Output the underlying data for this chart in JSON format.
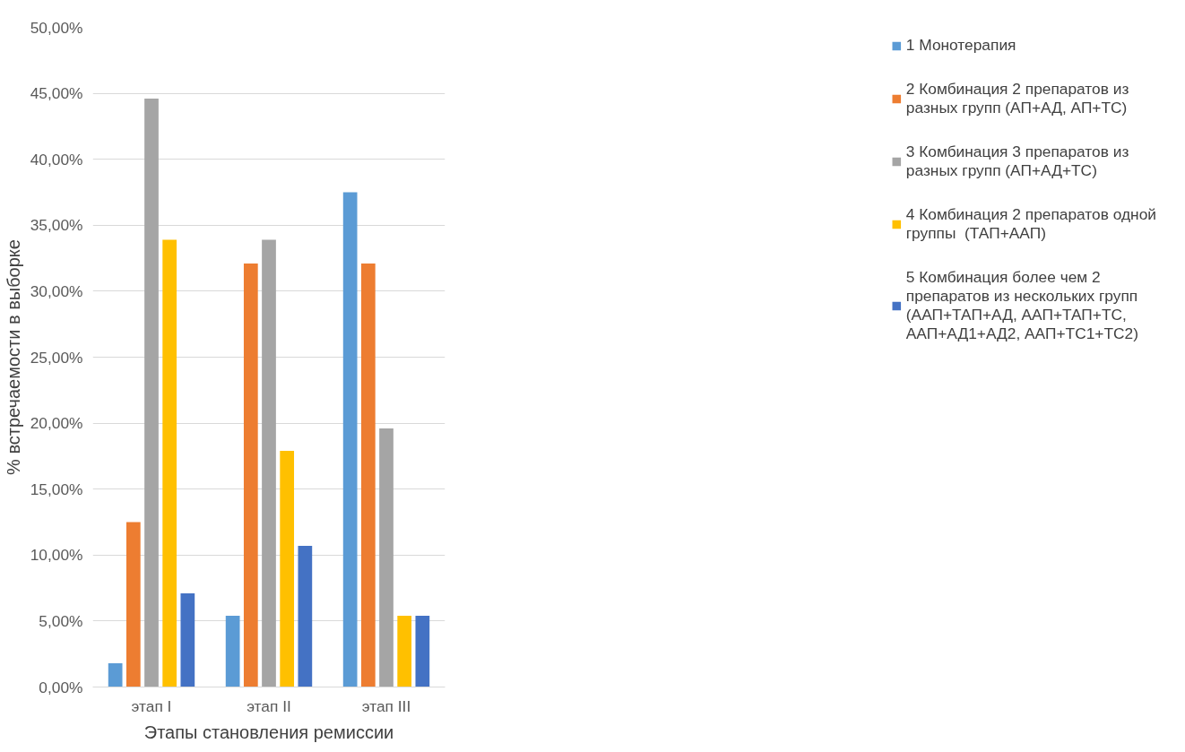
{
  "chart_data": {
    "type": "bar",
    "xlabel": "Этапы становления ремиссии",
    "ylabel": "% встречаемости в выборке",
    "categories": [
      "этап I",
      "этап II",
      "этап III"
    ],
    "series": [
      {
        "name": "1 Монотерапия",
        "color": "#5b9bd5",
        "values": [
          1.8,
          5.4,
          37.5
        ]
      },
      {
        "name": "2 Комбинация 2 препаратов из разных групп (АП+АД, АП+ТС)",
        "color": "#ed7d31",
        "values": [
          12.5,
          32.1,
          32.1
        ]
      },
      {
        "name": "3 Комбинация 3 препаратов из разных групп (АП+АД+ТС)",
        "color": "#a5a5a5",
        "values": [
          44.6,
          33.9,
          19.6
        ]
      },
      {
        "name": "4 Комбинация 2 препаратов одной группы  (ТАП+ААП)",
        "color": "#ffc000",
        "values": [
          33.9,
          17.9,
          5.4
        ]
      },
      {
        "name": "5 Комбинация более чем 2 препаратов из нескольких групп (ААП+ТАП+АД, ААП+ТАП+ТС, ААП+АД1+АД2, ААП+ТС1+ТС2)",
        "color": "#4472c4",
        "values": [
          7.1,
          10.7,
          5.4
        ]
      }
    ],
    "ylim": [
      0,
      50
    ],
    "yticks": [
      {
        "value": 0,
        "label": "0,00%"
      },
      {
        "value": 5,
        "label": "5,00%"
      },
      {
        "value": 10,
        "label": "10,00%"
      },
      {
        "value": 15,
        "label": "15,00%"
      },
      {
        "value": 20,
        "label": "20,00%"
      },
      {
        "value": 25,
        "label": "25,00%"
      },
      {
        "value": 30,
        "label": "30,00%"
      },
      {
        "value": 35,
        "label": "35,00%"
      },
      {
        "value": 40,
        "label": "40,00%"
      },
      {
        "value": 45,
        "label": "45,00%"
      },
      {
        "value": 50,
        "label": "50,00%"
      }
    ],
    "grid": "y",
    "legend": "right"
  }
}
